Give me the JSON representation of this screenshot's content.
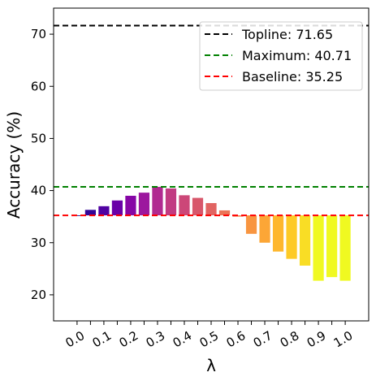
{
  "chart_data": {
    "type": "bar",
    "title": "",
    "xlabel": "λ",
    "ylabel": "Accuracy (%)",
    "ylim": [
      15,
      75
    ],
    "baseline_value": 35.25,
    "xticks": [
      "0.0",
      "0.1",
      "0.2",
      "0.3",
      "0.4",
      "0.5",
      "0.6",
      "0.7",
      "0.8",
      "0.9",
      "1.0"
    ],
    "yticks": [
      "20",
      "30",
      "40",
      "50",
      "60",
      "70"
    ],
    "x": [
      0.0,
      0.05,
      0.1,
      0.15,
      0.2,
      0.25,
      0.3,
      0.35,
      0.4,
      0.45,
      0.5,
      0.55,
      0.6,
      0.65,
      0.7,
      0.75,
      0.8,
      0.85,
      0.9,
      0.95,
      1.0
    ],
    "values": [
      35.25,
      36.3,
      37.0,
      38.1,
      39.0,
      39.6,
      40.71,
      40.4,
      39.1,
      38.6,
      37.6,
      36.2,
      35.0,
      31.7,
      30.0,
      28.3,
      26.9,
      25.6,
      22.7,
      23.4,
      22.7
    ],
    "bar_colors": [
      "#0d0887",
      "#330597",
      "#5002a2",
      "#6a00a8",
      "#8606a6",
      "#9c179e",
      "#b12a90",
      "#c13b82",
      "#cc4778",
      "#d8576b",
      "#e16462",
      "#ea7457",
      "#f2844b",
      "#f89540",
      "#fca636",
      "#feb72d",
      "#fdca26",
      "#f9dd25",
      "#f0f921",
      "#f0f921",
      "#f0f921"
    ],
    "reference_lines": [
      {
        "label": "Topline: 71.65",
        "value": 71.65,
        "color": "#000000"
      },
      {
        "label": "Maximum: 40.71",
        "value": 40.71,
        "color": "#008000"
      },
      {
        "label": "Baseline: 35.25",
        "value": 35.25,
        "color": "#ff0000"
      }
    ],
    "legend_position": "top-right",
    "grid": false
  }
}
